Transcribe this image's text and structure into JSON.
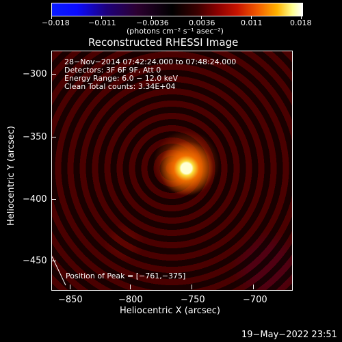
{
  "colorbar": {
    "tick_labels": [
      "−0.018",
      "−0.011",
      "−0.0036",
      "0.0036",
      "0.011",
      "0.018"
    ],
    "unit": "(photons cm⁻² s⁻¹ asec⁻²)"
  },
  "plot": {
    "title": "Reconstructed RHESSI Image",
    "info_lines": [
      "28−Nov−2014 07:42:24.000 to 07:48:24.000",
      "Detectors: 3F 6F 9F, Att 0",
      "Energy Range: 6.0 − 12.0 keV",
      "Clean    Total counts: 3.34E+04"
    ],
    "peak_text": "Position of Peak = [−761,−375]",
    "xlabel": "Heliocentric X (arcsec)",
    "ylabel": "Heliocentric Y (arcsec)",
    "x_ticks": [
      "−850",
      "−800",
      "−750",
      "−700"
    ],
    "y_ticks": [
      "−300",
      "−350",
      "−400",
      "−450"
    ]
  },
  "footer": {
    "timestamp": "19−May−2022 23:51"
  },
  "colors": {
    "accent": "#ffffff",
    "peak": "#ffff90"
  }
}
